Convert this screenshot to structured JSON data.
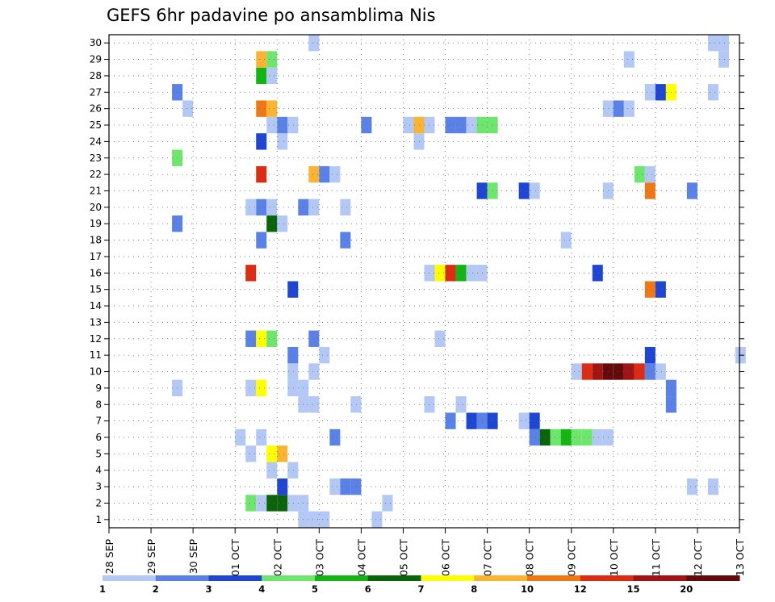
{
  "chart_data": {
    "type": "heatmap",
    "title": "GEFS 6hr padavine po ansamblima Nis",
    "xlabel": "",
    "ylabel": "",
    "x_ticks": [
      "28 SEP",
      "29 SEP",
      "30 SEP",
      "01 OCT",
      "02 OCT",
      "03 OCT",
      "04 OCT",
      "05 OCT",
      "06 OCT",
      "07 OCT",
      "08 OCT",
      "09 OCT",
      "10 OCT",
      "11 OCT",
      "12 OCT",
      "13 OCT"
    ],
    "x_range": [
      0,
      15
    ],
    "y_range": [
      0.5,
      30.5
    ],
    "y_ticks": [
      1,
      2,
      3,
      4,
      5,
      6,
      7,
      8,
      9,
      10,
      11,
      12,
      13,
      14,
      15,
      16,
      17,
      18,
      19,
      20,
      21,
      22,
      23,
      24,
      25,
      26,
      27,
      28,
      29,
      30
    ],
    "x_unit": "days since 28 SEP",
    "cell_width_days": 0.25,
    "grid": true,
    "legend_placement": "bottom",
    "color_scale": {
      "labels": [
        "1",
        "2",
        "3",
        "4",
        "5",
        "6",
        "7",
        "8",
        "10",
        "12",
        "15",
        "20"
      ],
      "colors": [
        "#b4c8f5",
        "#5a82e6",
        "#1e46d2",
        "#6ee66e",
        "#14b414",
        "#0a640a",
        "#ffff00",
        "#fab432",
        "#f07814",
        "#dc2d14",
        "#a01414",
        "#640a0a"
      ]
    },
    "cells": [
      {
        "x": 4.5,
        "y": 1,
        "level": 1
      },
      {
        "x": 4.75,
        "y": 1,
        "level": 1
      },
      {
        "x": 5.0,
        "y": 1,
        "level": 1
      },
      {
        "x": 6.25,
        "y": 1,
        "level": 1
      },
      {
        "x": 3.25,
        "y": 2,
        "level": 4
      },
      {
        "x": 3.5,
        "y": 2,
        "level": 1
      },
      {
        "x": 3.75,
        "y": 2,
        "level": 6
      },
      {
        "x": 4.0,
        "y": 2,
        "level": 6
      },
      {
        "x": 4.25,
        "y": 2,
        "level": 1
      },
      {
        "x": 4.5,
        "y": 2,
        "level": 1
      },
      {
        "x": 6.5,
        "y": 2,
        "level": 1
      },
      {
        "x": 4.0,
        "y": 3,
        "level": 3
      },
      {
        "x": 5.25,
        "y": 3,
        "level": 1
      },
      {
        "x": 5.5,
        "y": 3,
        "level": 2
      },
      {
        "x": 5.75,
        "y": 3,
        "level": 2
      },
      {
        "x": 13.75,
        "y": 3,
        "level": 1
      },
      {
        "x": 14.25,
        "y": 3,
        "level": 1
      },
      {
        "x": 3.75,
        "y": 4,
        "level": 1
      },
      {
        "x": 4.25,
        "y": 4,
        "level": 1
      },
      {
        "x": 3.25,
        "y": 5,
        "level": 1
      },
      {
        "x": 3.75,
        "y": 5,
        "level": 7
      },
      {
        "x": 4.0,
        "y": 5,
        "level": 8
      },
      {
        "x": 3.0,
        "y": 6,
        "level": 1
      },
      {
        "x": 3.5,
        "y": 6,
        "level": 1
      },
      {
        "x": 5.25,
        "y": 6,
        "level": 2
      },
      {
        "x": 10.0,
        "y": 6,
        "level": 2
      },
      {
        "x": 10.25,
        "y": 6,
        "level": 6
      },
      {
        "x": 10.5,
        "y": 6,
        "level": 4
      },
      {
        "x": 10.75,
        "y": 6,
        "level": 5
      },
      {
        "x": 11.0,
        "y": 6,
        "level": 4
      },
      {
        "x": 11.25,
        "y": 6,
        "level": 4
      },
      {
        "x": 11.5,
        "y": 6,
        "level": 1
      },
      {
        "x": 11.75,
        "y": 6,
        "level": 1
      },
      {
        "x": 8.0,
        "y": 7,
        "level": 2
      },
      {
        "x": 8.5,
        "y": 7,
        "level": 3
      },
      {
        "x": 8.75,
        "y": 7,
        "level": 2
      },
      {
        "x": 9.0,
        "y": 7,
        "level": 3
      },
      {
        "x": 9.75,
        "y": 7,
        "level": 1
      },
      {
        "x": 10.0,
        "y": 7,
        "level": 3
      },
      {
        "x": 4.5,
        "y": 8,
        "level": 1
      },
      {
        "x": 4.75,
        "y": 8,
        "level": 1
      },
      {
        "x": 5.75,
        "y": 8,
        "level": 1
      },
      {
        "x": 7.5,
        "y": 8,
        "level": 1
      },
      {
        "x": 8.25,
        "y": 8,
        "level": 1
      },
      {
        "x": 13.25,
        "y": 8,
        "level": 2
      },
      {
        "x": 1.5,
        "y": 9,
        "level": 1
      },
      {
        "x": 3.25,
        "y": 9,
        "level": 1
      },
      {
        "x": 3.5,
        "y": 9,
        "level": 7
      },
      {
        "x": 4.25,
        "y": 9,
        "level": 1
      },
      {
        "x": 4.5,
        "y": 9,
        "level": 1
      },
      {
        "x": 13.25,
        "y": 9,
        "level": 2
      },
      {
        "x": 4.25,
        "y": 10,
        "level": 1
      },
      {
        "x": 4.75,
        "y": 10,
        "level": 1
      },
      {
        "x": 11.0,
        "y": 10,
        "level": 1
      },
      {
        "x": 11.25,
        "y": 10,
        "level": 10
      },
      {
        "x": 11.5,
        "y": 10,
        "level": 11
      },
      {
        "x": 11.75,
        "y": 10,
        "level": 12
      },
      {
        "x": 12.0,
        "y": 10,
        "level": 12
      },
      {
        "x": 12.25,
        "y": 10,
        "level": 11
      },
      {
        "x": 12.5,
        "y": 10,
        "level": 10
      },
      {
        "x": 12.75,
        "y": 10,
        "level": 2
      },
      {
        "x": 13.0,
        "y": 10,
        "level": 1
      },
      {
        "x": 4.25,
        "y": 11,
        "level": 2
      },
      {
        "x": 5.0,
        "y": 11,
        "level": 1
      },
      {
        "x": 12.75,
        "y": 11,
        "level": 3
      },
      {
        "x": 14.9,
        "y": 11,
        "level": 1
      },
      {
        "x": 3.25,
        "y": 12,
        "level": 2
      },
      {
        "x": 3.5,
        "y": 12,
        "level": 7
      },
      {
        "x": 3.75,
        "y": 12,
        "level": 4
      },
      {
        "x": 4.75,
        "y": 12,
        "level": 2
      },
      {
        "x": 7.75,
        "y": 12,
        "level": 1
      },
      {
        "x": 4.25,
        "y": 15,
        "level": 3
      },
      {
        "x": 12.75,
        "y": 15,
        "level": 9
      },
      {
        "x": 13.0,
        "y": 15,
        "level": 3
      },
      {
        "x": 7.5,
        "y": 16,
        "level": 1
      },
      {
        "x": 3.25,
        "y": 16,
        "level": 10
      },
      {
        "x": 7.75,
        "y": 16,
        "level": 7
      },
      {
        "x": 8.0,
        "y": 16,
        "level": 10
      },
      {
        "x": 8.25,
        "y": 16,
        "level": 5
      },
      {
        "x": 8.5,
        "y": 16,
        "level": 1
      },
      {
        "x": 8.75,
        "y": 16,
        "level": 1
      },
      {
        "x": 11.5,
        "y": 16,
        "level": 3
      },
      {
        "x": 3.5,
        "y": 18,
        "level": 2
      },
      {
        "x": 5.5,
        "y": 18,
        "level": 2
      },
      {
        "x": 10.75,
        "y": 18,
        "level": 1
      },
      {
        "x": 3.75,
        "y": 19,
        "level": 6
      },
      {
        "x": 4.0,
        "y": 19,
        "level": 1
      },
      {
        "x": 1.5,
        "y": 19,
        "level": 2
      },
      {
        "x": 3.25,
        "y": 20,
        "level": 1
      },
      {
        "x": 3.5,
        "y": 20,
        "level": 2
      },
      {
        "x": 3.75,
        "y": 20,
        "level": 1
      },
      {
        "x": 4.5,
        "y": 20,
        "level": 2
      },
      {
        "x": 4.75,
        "y": 20,
        "level": 1
      },
      {
        "x": 5.5,
        "y": 20,
        "level": 1
      },
      {
        "x": 8.75,
        "y": 21,
        "level": 3
      },
      {
        "x": 9.0,
        "y": 21,
        "level": 4
      },
      {
        "x": 9.75,
        "y": 21,
        "level": 3
      },
      {
        "x": 10.0,
        "y": 21,
        "level": 1
      },
      {
        "x": 11.75,
        "y": 21,
        "level": 1
      },
      {
        "x": 12.75,
        "y": 21,
        "level": 9
      },
      {
        "x": 13.75,
        "y": 21,
        "level": 2
      },
      {
        "x": 3.5,
        "y": 22,
        "level": 10
      },
      {
        "x": 4.75,
        "y": 22,
        "level": 8
      },
      {
        "x": 5.0,
        "y": 22,
        "level": 2
      },
      {
        "x": 5.25,
        "y": 22,
        "level": 1
      },
      {
        "x": 12.5,
        "y": 22,
        "level": 4
      },
      {
        "x": 12.75,
        "y": 22,
        "level": 1
      },
      {
        "x": 1.5,
        "y": 23,
        "level": 4
      },
      {
        "x": 3.5,
        "y": 24,
        "level": 3
      },
      {
        "x": 4.0,
        "y": 24,
        "level": 1
      },
      {
        "x": 7.25,
        "y": 24,
        "level": 1
      },
      {
        "x": 3.75,
        "y": 25,
        "level": 1
      },
      {
        "x": 4.0,
        "y": 25,
        "level": 2
      },
      {
        "x": 4.25,
        "y": 25,
        "level": 1
      },
      {
        "x": 6.0,
        "y": 25,
        "level": 2
      },
      {
        "x": 7.0,
        "y": 25,
        "level": 1
      },
      {
        "x": 7.25,
        "y": 25,
        "level": 8
      },
      {
        "x": 7.5,
        "y": 25,
        "level": 1
      },
      {
        "x": 8.0,
        "y": 25,
        "level": 2
      },
      {
        "x": 8.25,
        "y": 25,
        "level": 2
      },
      {
        "x": 8.5,
        "y": 25,
        "level": 1
      },
      {
        "x": 8.75,
        "y": 25,
        "level": 4
      },
      {
        "x": 9.0,
        "y": 25,
        "level": 4
      },
      {
        "x": 1.75,
        "y": 26,
        "level": 1
      },
      {
        "x": 3.5,
        "y": 26,
        "level": 9
      },
      {
        "x": 3.75,
        "y": 26,
        "level": 8
      },
      {
        "x": 11.75,
        "y": 26,
        "level": 1
      },
      {
        "x": 12.0,
        "y": 26,
        "level": 2
      },
      {
        "x": 12.25,
        "y": 26,
        "level": 1
      },
      {
        "x": 1.5,
        "y": 27,
        "level": 2
      },
      {
        "x": 12.75,
        "y": 27,
        "level": 1
      },
      {
        "x": 13.0,
        "y": 27,
        "level": 3
      },
      {
        "x": 13.25,
        "y": 27,
        "level": 7
      },
      {
        "x": 14.25,
        "y": 27,
        "level": 1
      },
      {
        "x": 3.5,
        "y": 28,
        "level": 5
      },
      {
        "x": 3.75,
        "y": 28,
        "level": 1
      },
      {
        "x": 3.5,
        "y": 29,
        "level": 8
      },
      {
        "x": 3.75,
        "y": 29,
        "level": 4
      },
      {
        "x": 12.25,
        "y": 29,
        "level": 1
      },
      {
        "x": 14.5,
        "y": 29,
        "level": 1
      },
      {
        "x": 4.75,
        "y": 30,
        "level": 1
      },
      {
        "x": 14.25,
        "y": 30,
        "level": 1
      },
      {
        "x": 14.5,
        "y": 30,
        "level": 1
      }
    ]
  }
}
